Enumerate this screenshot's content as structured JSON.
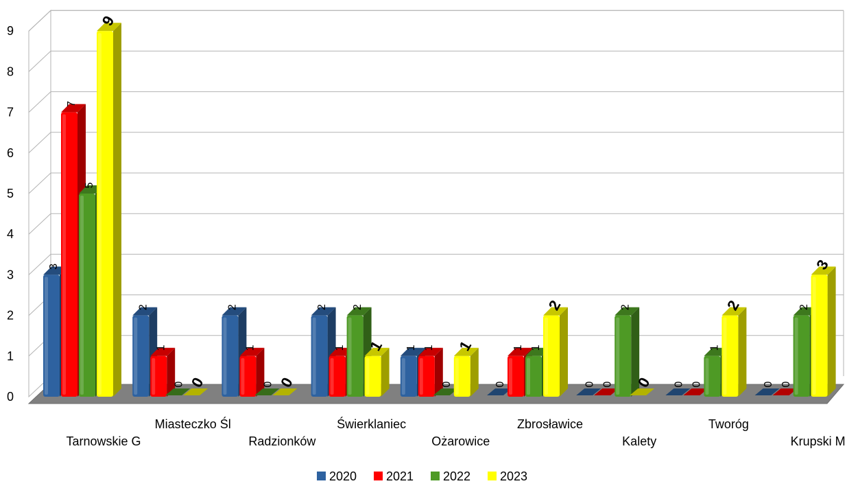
{
  "chart_data": {
    "type": "bar",
    "style": "3d-clustered-column",
    "categories": [
      "Tarnowskie G",
      "Miasteczko Śl",
      "Radzionków",
      "Świerklaniec",
      "Ożarowice",
      "Zbrosławice",
      "Kalety",
      "Tworóg",
      "Krupski M"
    ],
    "series": [
      {
        "name": "2020",
        "color": "#2e62a0",
        "values": [
          3,
          2,
          2,
          2,
          1,
          0,
          0,
          0,
          0
        ]
      },
      {
        "name": "2021",
        "color": "#ff0000",
        "values": [
          7,
          1,
          1,
          1,
          1,
          1,
          0,
          0,
          0
        ]
      },
      {
        "name": "2022",
        "color": "#4e9a25",
        "values": [
          5,
          0,
          0,
          2,
          0,
          1,
          2,
          1,
          2
        ]
      },
      {
        "name": "2023",
        "color": "#ffff00",
        "values": [
          9,
          0,
          0,
          1,
          1,
          2,
          0,
          2,
          3
        ]
      }
    ],
    "ylim": [
      0,
      9
    ],
    "yticks": [
      "0",
      "1",
      "2",
      "3",
      "4",
      "5",
      "6",
      "7",
      "8",
      "9"
    ],
    "grid": true,
    "legend": "bottom",
    "data_labels": "rotated; 2023 series in bold"
  }
}
